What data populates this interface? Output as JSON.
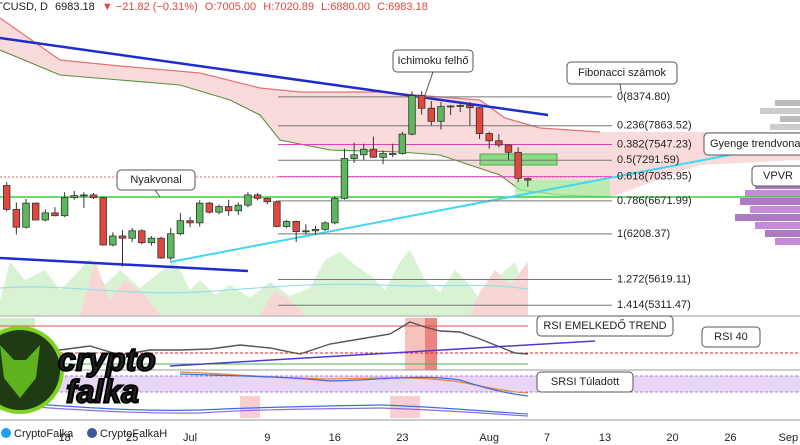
{
  "chart_data": {
    "type": "candlestick",
    "header": {
      "symbol": "TCUSD, D",
      "last": "6983.18",
      "change": "▼ −21.82 (−0.31%)",
      "ohlc": [
        "O:7005.00",
        "H:7020.89",
        "L:6880.00",
        "C:6983.18"
      ]
    },
    "annotations": [
      "Ichimoku felhő",
      "Fibonacci számok",
      "Gyenge trendvonal",
      "VPVR",
      "Nyakvonal",
      "RSI EMELKEDŐ TREND",
      "RSI 40",
      "SRSI Túladott"
    ],
    "logo": [
      "crypto",
      "falka"
    ],
    "footer": [
      "CryptoFalka",
      "CryptoFalkaH"
    ],
    "log_scale": true,
    "ylim": [
      5200,
      10350
    ],
    "up_color": "#5cb85c",
    "down_color": "#e0483f",
    "categories": [
      null,
      null,
      null,
      null,
      null,
      null,
      "18",
      null,
      null,
      null,
      null,
      null,
      null,
      "25",
      null,
      null,
      null,
      null,
      null,
      "Jul",
      null,
      null,
      null,
      null,
      null,
      null,
      null,
      "9",
      null,
      null,
      null,
      null,
      null,
      null,
      "16",
      null,
      null,
      null,
      null,
      null,
      null,
      "23",
      null,
      null,
      null,
      null,
      null,
      null,
      null,
      null,
      "Aug",
      null,
      null,
      null,
      null,
      null,
      "7",
      null,
      null,
      null,
      null,
      null,
      "13",
      null,
      null,
      null,
      null,
      null,
      null,
      "20",
      null,
      null,
      null,
      null,
      null,
      "26",
      null,
      null,
      null,
      null,
      null,
      "Sep"
    ],
    "open": [
      6900,
      6550,
      6300,
      6640,
      6400,
      6500,
      6460,
      6720,
      6750,
      6760,
      6720,
      6060,
      6180,
      6150,
      6250,
      6090,
      6150,
      5890,
      6210,
      6390,
      6360,
      6640,
      6510,
      6590,
      6530,
      6610,
      6760,
      6710,
      6660,
      6310,
      6380,
      6240,
      6250,
      6270,
      6360,
      6710,
      7320,
      7380,
      7470,
      7340,
      7400,
      7400,
      7720,
      8400,
      8170,
      7940,
      8200,
      8210,
      8220,
      8180,
      7730,
      7610,
      7540,
      7420,
      7005.0,
      null,
      null,
      null,
      null,
      null,
      null,
      null,
      null,
      null,
      null,
      null,
      null,
      null,
      null,
      null,
      null,
      null,
      null,
      null,
      null,
      null,
      null,
      null,
      null,
      null,
      null,
      null
    ],
    "high": [
      6950,
      6650,
      6700,
      6650,
      6550,
      6580,
      6800,
      6820,
      6800,
      6790,
      6730,
      6230,
      6260,
      6290,
      6270,
      6180,
      6170,
      6290,
      6500,
      6440,
      6680,
      6660,
      6620,
      6690,
      6650,
      6800,
      6790,
      6720,
      6680,
      6400,
      6390,
      6340,
      6320,
      6380,
      6740,
      7480,
      7580,
      7560,
      7680,
      7450,
      7560,
      7760,
      8480,
      8480,
      8300,
      8280,
      8230,
      8260,
      8280,
      8190,
      7760,
      7720,
      7550,
      7500,
      7020.89,
      null,
      null,
      null,
      null,
      null,
      null,
      null,
      null,
      null,
      null,
      null,
      null,
      null,
      null,
      null,
      null,
      null,
      null,
      null,
      null,
      null,
      null,
      null,
      null,
      null,
      null,
      null
    ],
    "low": [
      6520,
      6200,
      6280,
      6400,
      6380,
      6450,
      6440,
      6690,
      6570,
      6700,
      6050,
      6040,
      5780,
      6100,
      6070,
      6050,
      5880,
      5860,
      6190,
      6300,
      6310,
      6490,
      6480,
      6460,
      6470,
      6580,
      6680,
      6620,
      6300,
      6290,
      6100,
      6200,
      6200,
      6250,
      6340,
      6690,
      7250,
      7300,
      7330,
      7230,
      7340,
      7380,
      7700,
      8060,
      7870,
      7800,
      8050,
      8100,
      7870,
      7640,
      7480,
      7500,
      7300,
      6950,
      6880.0,
      null,
      null,
      null,
      null,
      null,
      null,
      null,
      null,
      null,
      null,
      null,
      null,
      null,
      null,
      null,
      null,
      null,
      null,
      null,
      null,
      null,
      null,
      null,
      null,
      null,
      null,
      null
    ],
    "close": [
      6550,
      6300,
      6640,
      6400,
      6500,
      6460,
      6720,
      6750,
      6760,
      6720,
      6060,
      6180,
      6150,
      6250,
      6090,
      6150,
      5890,
      6210,
      6390,
      6360,
      6640,
      6510,
      6590,
      6530,
      6610,
      6760,
      6710,
      6660,
      6310,
      6380,
      6240,
      6250,
      6270,
      6360,
      6710,
      7320,
      7380,
      7470,
      7340,
      7400,
      7400,
      7720,
      8400,
      8170,
      7940,
      8200,
      8210,
      8220,
      8180,
      7730,
      7610,
      7540,
      7420,
      7010,
      6983.18,
      null,
      null,
      null,
      null,
      null,
      null,
      null,
      null,
      null,
      null,
      null,
      null,
      null,
      null,
      null,
      null,
      null,
      null,
      null,
      null,
      null,
      null,
      null,
      null,
      null,
      null,
      null
    ],
    "fib_levels": [
      {
        "value": 8374.8,
        "label": "0(8374.80)",
        "color": "#333333"
      },
      {
        "value": 7863.52,
        "label": "0.236(7863.52)",
        "color": "#333333"
      },
      {
        "value": 7547.23,
        "label": "0.382(7547.23)",
        "color": "#e040c0"
      },
      {
        "value": 7291.59,
        "label": "0.5(7291.59)",
        "color": "#333333"
      },
      {
        "value": 7035.95,
        "label": "0.618(7035.95)",
        "color": "#e040c0"
      },
      {
        "value": 6671.99,
        "label": "0.786(6671.99)",
        "color": "#333333"
      },
      {
        "value": 6208.37,
        "label": "1(6208.37)",
        "color": "#333333"
      },
      {
        "value": 5619.11,
        "label": "1.272(5619.11)",
        "color": "#333333"
      },
      {
        "value": 5311.47,
        "label": "1.414(5311.47)",
        "color": "#333333"
      }
    ]
  }
}
